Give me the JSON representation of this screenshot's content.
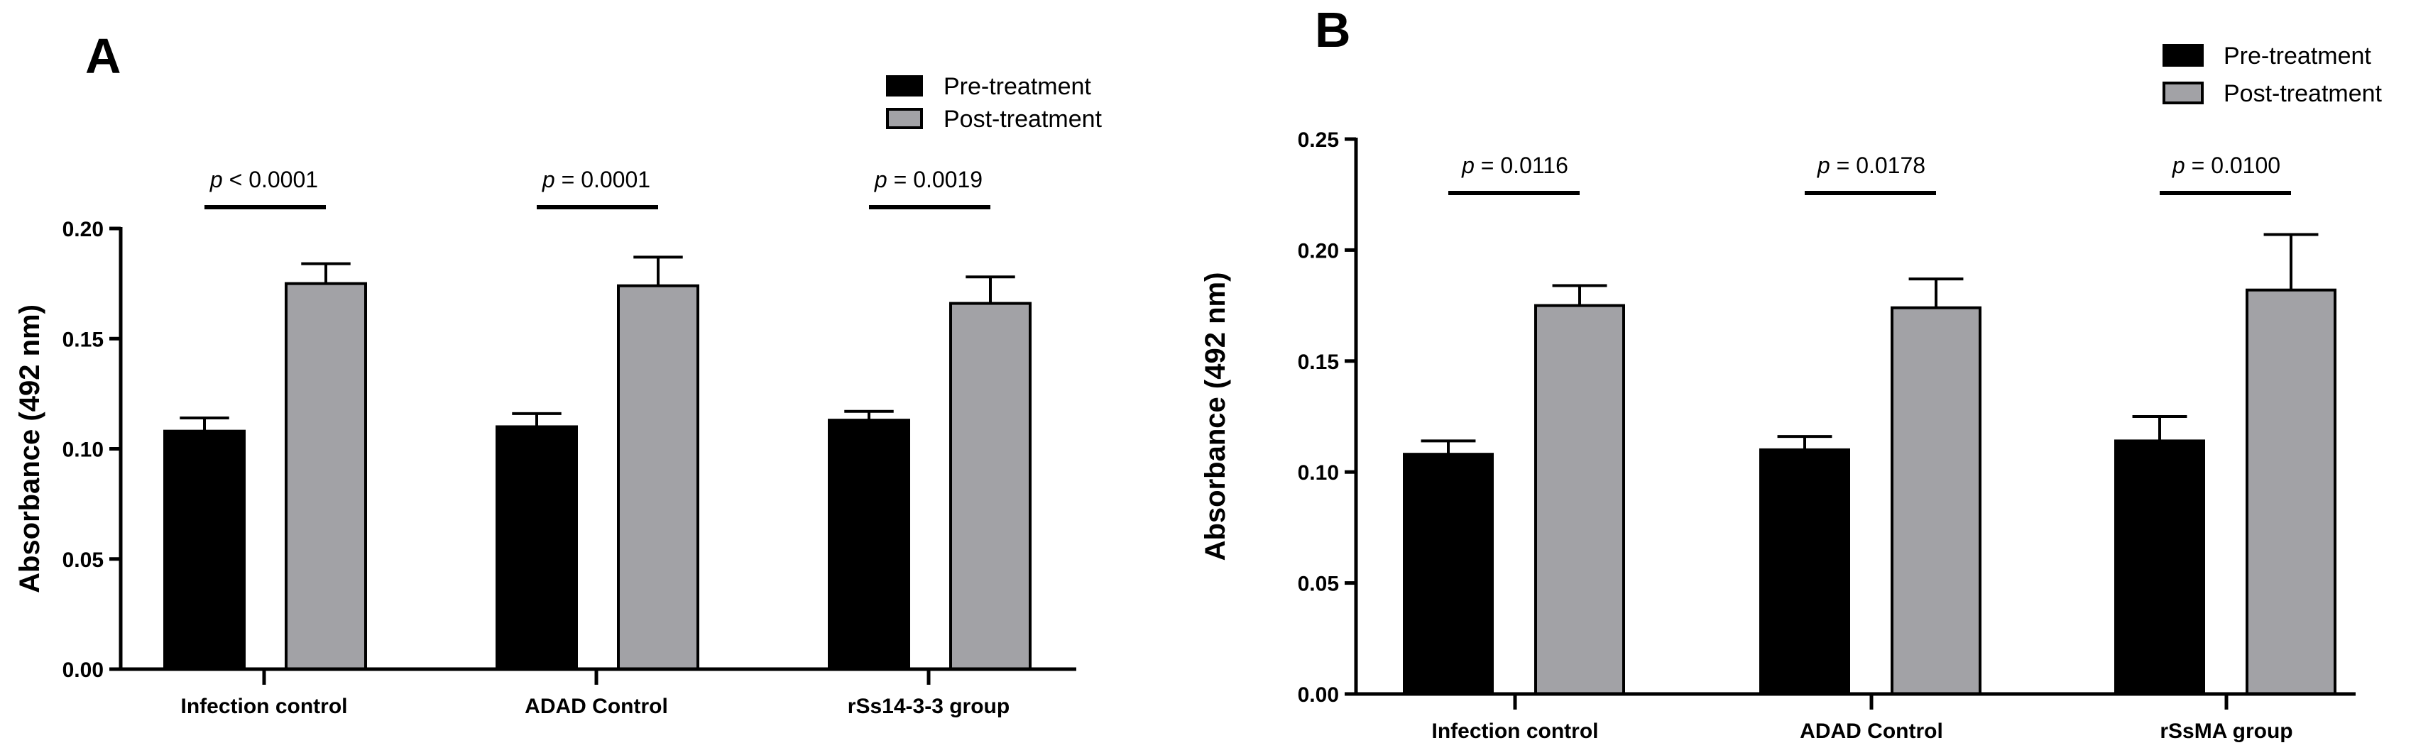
{
  "chart_data": [
    {
      "type": "bar",
      "panel_label": "A",
      "categories": [
        "Infection control",
        "ADAD Control",
        "rSs14-3-3 group"
      ],
      "series": [
        {
          "name": "Pre-treatment",
          "values": [
            0.108,
            0.11,
            0.113
          ],
          "errors": [
            0.006,
            0.006,
            0.004
          ],
          "color": "#000000"
        },
        {
          "name": "Post-treatment",
          "values": [
            0.175,
            0.174,
            0.166
          ],
          "errors": [
            0.009,
            0.013,
            0.012
          ],
          "color": "#a2a2a6"
        }
      ],
      "xlabel": "",
      "ylabel": "Absorbance (492 nm)",
      "ylim": [
        0,
        0.2
      ],
      "yticks": [
        "0.00",
        "0.05",
        "0.10",
        "0.15",
        "0.20"
      ],
      "annotations": [
        {
          "category": "Infection control",
          "p_symbol": "p",
          "p_text": " < 0.0001"
        },
        {
          "category": "ADAD Control",
          "p_symbol": "p",
          "p_text": " = 0.0001"
        },
        {
          "category": "rSs14-3-3 group",
          "p_symbol": "p",
          "p_text": " = 0.0019"
        }
      ],
      "grid": false,
      "legend_position": "top-right"
    },
    {
      "type": "bar",
      "panel_label": "B",
      "categories": [
        "Infection control",
        "ADAD Control",
        "rSsMA group"
      ],
      "series": [
        {
          "name": "Pre-treatment",
          "values": [
            0.108,
            0.11,
            0.114
          ],
          "errors": [
            0.006,
            0.006,
            0.011
          ],
          "color": "#000000"
        },
        {
          "name": "Post-treatment",
          "values": [
            0.175,
            0.174,
            0.182
          ],
          "errors": [
            0.009,
            0.013,
            0.025
          ],
          "color": "#a2a2a6"
        }
      ],
      "xlabel": "",
      "ylabel": "Absorbance (492 nm)",
      "ylim": [
        0,
        0.25
      ],
      "yticks": [
        "0.00",
        "0.05",
        "0.10",
        "0.15",
        "0.20",
        "0.25"
      ],
      "annotations": [
        {
          "category": "Infection control",
          "p_symbol": "p",
          "p_text": " = 0.0116"
        },
        {
          "category": "ADAD Control",
          "p_symbol": "p",
          "p_text": " = 0.0178"
        },
        {
          "category": "rSsMA group",
          "p_symbol": "p",
          "p_text": " = 0.0100"
        }
      ],
      "grid": false,
      "legend_position": "top-right"
    }
  ]
}
